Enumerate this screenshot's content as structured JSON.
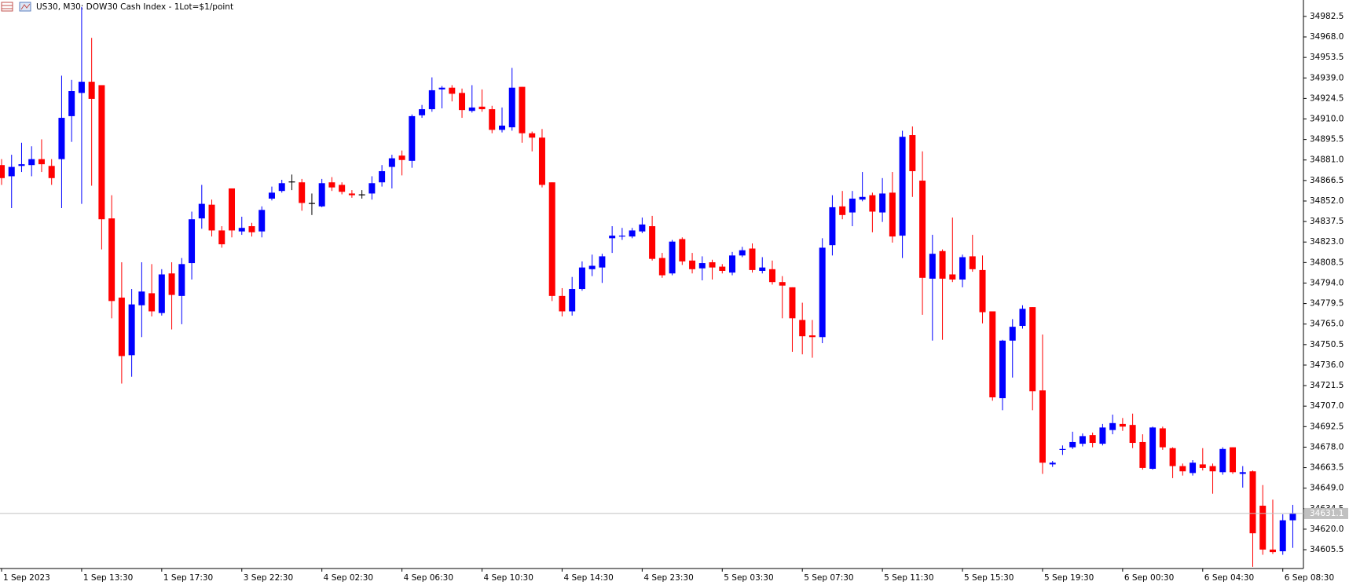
{
  "chart_data": {
    "type": "candlestick",
    "title": "US30, M30:  DOW30 Cash Index - 1Lot=$1/point",
    "up_color": "#0000ff",
    "down_color": "#ff0000",
    "doji_color": "#000000",
    "categories": [
      "1 Sep 2023",
      null,
      null,
      null,
      null,
      null,
      null,
      null,
      "1 Sep 13:30",
      null,
      null,
      null,
      null,
      null,
      null,
      null,
      "1 Sep 17:30",
      null,
      null,
      null,
      null,
      null,
      null,
      null,
      "3 Sep 22:30",
      null,
      null,
      null,
      null,
      null,
      null,
      null,
      "4 Sep 02:30",
      null,
      null,
      null,
      null,
      null,
      null,
      null,
      "4 Sep 06:30",
      null,
      null,
      null,
      null,
      null,
      null,
      null,
      "4 Sep 10:30",
      null,
      null,
      null,
      null,
      null,
      null,
      null,
      "4 Sep 14:30",
      null,
      null,
      null,
      null,
      null,
      null,
      null,
      "4 Sep 23:30",
      null,
      null,
      null,
      null,
      null,
      null,
      null,
      "5 Sep 03:30",
      null,
      null,
      null,
      null,
      null,
      null,
      null,
      "5 Sep 07:30",
      null,
      null,
      null,
      null,
      null,
      null,
      null,
      "5 Sep 11:30",
      null,
      null,
      null,
      null,
      null,
      null,
      null,
      "5 Sep 15:30",
      null,
      null,
      null,
      null,
      null,
      null,
      null,
      "5 Sep 19:30",
      null,
      null,
      null,
      null,
      null,
      null,
      null,
      "6 Sep 00:30",
      null,
      null,
      null,
      null,
      null,
      null,
      null,
      "6 Sep 04:30",
      null,
      null,
      null,
      null,
      null,
      null,
      null,
      "6 Sep 08:30",
      null
    ],
    "open": [
      34877.4,
      34869.5,
      34876.8,
      34877.4,
      34881.6,
      34876.8,
      34881.6,
      34912.0,
      34928.4,
      34936.3,
      34933.9,
      34839.7,
      34783.7,
      34743.0,
      34778.3,
      34786.8,
      34772.8,
      34800.8,
      34784.9,
      34808.1,
      34839.7,
      34849.4,
      34831.2,
      34860.9,
      34830.5,
      34834.2,
      34830.5,
      34853.7,
      34859.1,
      34865.8,
      34865.2,
      34850.6,
      34848.2,
      34865.2,
      34863.4,
      34857.3,
      34856.7,
      34857.3,
      34865.2,
      34876.1,
      34884.1,
      34880.4,
      34912.6,
      34916.9,
      34930.9,
      34932.1,
      34928.4,
      34915.7,
      34918.7,
      34916.9,
      34902.3,
      34904.1,
      34932.7,
      34899.9,
      34896.8,
      34865.2,
      34784.9,
      34774.0,
      34789.8,
      34803.8,
      34805.0,
      34825.7,
      34826.9,
      34826.9,
      34830.5,
      34834.2,
      34811.7,
      34800.8,
      34825.1,
      34809.9,
      34804.4,
      34808.7,
      34805.6,
      34801.4,
      34813.5,
      34818.4,
      34802.6,
      34803.8,
      34794.7,
      34791.0,
      34767.9,
      34757.0,
      34755.8,
      34820.8,
      34848.2,
      34843.9,
      34853.0,
      34856.1,
      34843.9,
      34857.9,
      34827.5,
      34898.6,
      34866.4,
      34797.1,
      34816.6,
      34800.1,
      34796.5,
      34812.9,
      34803.2,
      34774.0,
      34712.6,
      34753.3,
      34763.7,
      34777.0,
      34718.1,
      34665.8,
      34676.1,
      34677.9,
      34680.4,
      34686.5,
      34680.4,
      34690.1,
      34694.4,
      34693.7,
      34681.6,
      34662.7,
      34691.3,
      34677.3,
      34664.6,
      34659.7,
      34665.8,
      34664.6,
      34660.3,
      34677.9,
      34659.1,
      34660.9,
      34636.6,
      34605.6,
      34604.4,
      34626.3
    ],
    "high": [
      34881.6,
      34884.7,
      34893.2,
      34890.7,
      34895.6,
      34881.6,
      34940.6,
      34937.6,
      34989.2,
      34967.3,
      34933.9,
      34856.1,
      34808.7,
      34789.8,
      34808.7,
      34807.4,
      34803.8,
      34808.7,
      34811.7,
      34844.5,
      34863.4,
      34853.0,
      34834.2,
      34860.9,
      34840.9,
      34836.6,
      34848.2,
      34862.2,
      34867.0,
      34870.7,
      34867.6,
      34857.3,
      34867.6,
      34868.9,
      34865.2,
      34859.7,
      34859.7,
      34869.5,
      34877.4,
      34884.7,
      34887.7,
      34913.2,
      34919.9,
      34939.4,
      34933.3,
      34933.9,
      34931.5,
      34933.9,
      34930.9,
      34919.3,
      34918.1,
      34946.1,
      34932.7,
      34901.1,
      34902.9,
      34865.2,
      34790.4,
      34798.3,
      34809.3,
      34814.1,
      34814.7,
      34834.2,
      34833.0,
      34833.0,
      34840.3,
      34841.5,
      34815.3,
      34824.5,
      34826.3,
      34815.3,
      34812.9,
      34810.5,
      34807.4,
      34816.0,
      34819.6,
      34822.0,
      34812.3,
      34809.9,
      34798.9,
      34791.0,
      34780.1,
      34767.9,
      34825.7,
      34856.1,
      34859.1,
      34859.1,
      34872.5,
      34857.9,
      34868.2,
      34872.5,
      34901.7,
      34904.7,
      34887.1,
      34828.1,
      34817.8,
      34840.3,
      34814.1,
      34828.1,
      34813.5,
      34774.0,
      34753.9,
      34768.5,
      34778.3,
      34777.0,
      34757.6,
      34668.2,
      34679.2,
      34688.9,
      34687.7,
      34688.3,
      34694.4,
      34701.0,
      34698.6,
      34701.7,
      34687.1,
      34692.5,
      34692.5,
      34677.9,
      34666.4,
      34668.8,
      34677.3,
      34666.4,
      34677.9,
      34677.9,
      34664.6,
      34661.5,
      34651.2,
      34640.9,
      34630.5,
      34637.2
    ],
    "low": [
      34863.4,
      34847.0,
      34872.5,
      34869.5,
      34872.5,
      34863.4,
      34847.0,
      34893.8,
      34850.0,
      34862.8,
      34817.8,
      34769.1,
      34722.9,
      34727.8,
      34755.8,
      34770.4,
      34771.0,
      34761.2,
      34764.9,
      34796.5,
      34832.4,
      34826.9,
      34819.0,
      34826.3,
      34828.1,
      34826.9,
      34826.3,
      34852.4,
      34857.9,
      34859.7,
      34845.1,
      34842.1,
      34847.6,
      34859.1,
      34856.7,
      34854.3,
      34853.7,
      34853.0,
      34862.2,
      34860.9,
      34870.1,
      34875.5,
      34910.8,
      34915.1,
      34917.5,
      34922.4,
      34910.8,
      34914.5,
      34915.1,
      34899.9,
      34900.5,
      34901.7,
      34893.2,
      34887.1,
      34861.6,
      34781.3,
      34770.4,
      34771.0,
      34788.6,
      34798.9,
      34794.1,
      34815.3,
      34824.5,
      34825.7,
      34829.3,
      34809.9,
      34797.7,
      34799.5,
      34806.8,
      34800.8,
      34795.9,
      34796.5,
      34800.8,
      34799.5,
      34812.3,
      34801.4,
      34800.8,
      34792.9,
      34769.1,
      34745.4,
      34743.6,
      34741.2,
      34751.5,
      34813.5,
      34839.1,
      34834.2,
      34851.8,
      34829.9,
      34837.2,
      34822.6,
      34811.7,
      34854.9,
      34771.6,
      34753.3,
      34753.9,
      34794.7,
      34791.0,
      34802.0,
      34765.5,
      34710.8,
      34704.1,
      34727.2,
      34761.8,
      34704.1,
      34659.1,
      34664.0,
      34672.5,
      34676.7,
      34678.5,
      34677.9,
      34679.2,
      34687.1,
      34689.5,
      34677.3,
      34662.1,
      34662.1,
      34676.1,
      34656.1,
      34657.9,
      34657.9,
      34661.5,
      34645.1,
      34658.5,
      34659.1,
      34649.4,
      34593.4,
      34601.9,
      34602.5,
      34601.9,
      34606.8
    ],
    "close": [
      34868.2,
      34876.1,
      34878.0,
      34881.6,
      34878.0,
      34868.2,
      34910.8,
      34929.7,
      34936.3,
      34924.2,
      34839.1,
      34781.3,
      34742.4,
      34778.9,
      34788.0,
      34774.0,
      34800.1,
      34785.6,
      34807.4,
      34839.1,
      34850.0,
      34831.2,
      34821.4,
      34831.2,
      34833.0,
      34829.9,
      34845.7,
      34857.9,
      34864.6,
      34865.8,
      34850.6,
      34850.6,
      34864.6,
      34861.6,
      34858.5,
      34856.1,
      34856.7,
      34864.6,
      34873.1,
      34882.2,
      34881.0,
      34912.0,
      34916.9,
      34930.3,
      34932.1,
      34927.8,
      34916.3,
      34918.1,
      34916.9,
      34902.3,
      34905.3,
      34932.1,
      34899.9,
      34896.8,
      34863.4,
      34784.9,
      34774.0,
      34789.8,
      34805.0,
      34806.2,
      34812.9,
      34827.5,
      34827.5,
      34831.2,
      34835.4,
      34811.1,
      34799.5,
      34823.3,
      34809.3,
      34803.8,
      34808.1,
      34805.0,
      34802.6,
      34813.5,
      34817.2,
      34803.2,
      34805.0,
      34794.7,
      34792.2,
      34769.1,
      34756.4,
      34755.8,
      34819.0,
      34847.6,
      34842.1,
      34853.7,
      34854.9,
      34844.5,
      34857.3,
      34826.9,
      34897.4,
      34873.1,
      34797.7,
      34814.7,
      34797.1,
      34796.5,
      34812.3,
      34803.8,
      34773.4,
      34713.2,
      34753.3,
      34763.1,
      34775.8,
      34717.5,
      34667.0,
      34667.0,
      34676.7,
      34681.6,
      34685.8,
      34681.0,
      34691.9,
      34695.0,
      34692.5,
      34681.0,
      34663.3,
      34691.9,
      34677.9,
      34664.6,
      34660.9,
      34667.0,
      34663.3,
      34660.9,
      34676.7,
      34660.3,
      34660.3,
      34617.1,
      34605.6,
      34603.8,
      34626.3,
      34631.1
    ],
    "bid": 34631.1,
    "ylim": [
      34592.2,
      34994.1
    ],
    "yticks": [
      34982.5,
      {
        "value": 34968,
        "label": "34968.0"
      },
      34953.5,
      {
        "value": 34939,
        "label": "34939.0"
      },
      34924.5,
      {
        "value": 34910,
        "label": "34910.0"
      },
      34895.5,
      {
        "value": 34881,
        "label": "34881.0"
      },
      34866.5,
      {
        "value": 34852,
        "label": "34852.0"
      },
      34837.5,
      {
        "value": 34823,
        "label": "34823.0"
      },
      34808.5,
      {
        "value": 34794,
        "label": "34794.0"
      },
      34779.5,
      {
        "value": 34765,
        "label": "34765.0"
      },
      34750.5,
      {
        "value": 34736,
        "label": "34736.0"
      },
      34721.5,
      {
        "value": 34707,
        "label": "34707.0"
      },
      34692.5,
      {
        "value": 34678,
        "label": "34678.0"
      },
      34663.5,
      {
        "value": 34649,
        "label": "34649.0"
      },
      34634.5,
      {
        "value": 34620,
        "label": "34620.0"
      },
      34605.5
    ],
    "grid": false
  }
}
